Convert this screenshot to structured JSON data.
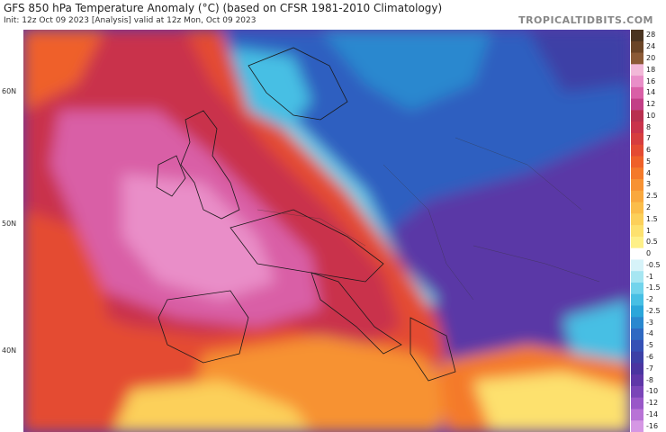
{
  "header": {
    "title": "GFS 850 hPa Temperature Anomaly (°C) (based on CFSR 1981-2010 Climatology)",
    "subtitle": "Init: 12z Oct 09 2023   [Analysis]   valid at 12z Mon, Oct 09 2023",
    "brand": "TROPICALTIDBITS.COM"
  },
  "latitude_labels": [
    "60N",
    "50N",
    "40N"
  ],
  "colorbar": {
    "labels": [
      "28",
      "24",
      "20",
      "18",
      "16",
      "14",
      "12",
      "10",
      "8",
      "7",
      "6",
      "5",
      "4",
      "3",
      "2.5",
      "2",
      "1.5",
      "1",
      "0.5",
      "0",
      "-0.5",
      "-1",
      "-1.5",
      "-2",
      "-2.5",
      "-3",
      "-4",
      "-5",
      "-6",
      "-7",
      "-8",
      "-10",
      "-12",
      "-14",
      "-16"
    ],
    "colors": [
      "#4a3420",
      "#6b4526",
      "#8b5a36",
      "#f2b8d8",
      "#e98ec8",
      "#d95fa6",
      "#c23f86",
      "#b8304f",
      "#c9334b",
      "#d63d3e",
      "#e44b32",
      "#ef6129",
      "#f47a2a",
      "#f79233",
      "#f9a83e",
      "#fbbd4a",
      "#fcd05a",
      "#fde16e",
      "#fef088",
      "#ffffff",
      "#d6f3f9",
      "#a6e6f2",
      "#72d4ec",
      "#47bfe4",
      "#2ba6da",
      "#2a88cf",
      "#2f69c2",
      "#3550b5",
      "#3c40a6",
      "#4a35a0",
      "#5f37a8",
      "#7a45b8",
      "#9958c8",
      "#b873d6",
      "#d597e4"
    ]
  }
}
